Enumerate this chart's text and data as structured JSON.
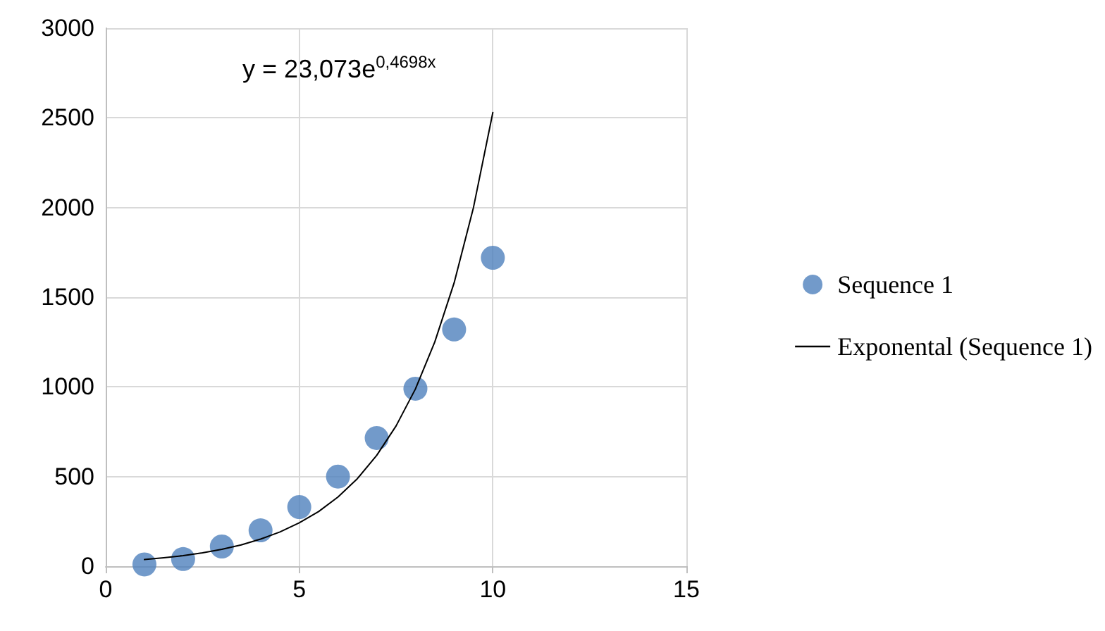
{
  "chart_data": {
    "type": "scatter",
    "annotations": [
      "y = 23,073e$^{0,4698x}$"
    ],
    "xlim": [
      0,
      15
    ],
    "xticks": [
      0,
      5,
      10,
      15
    ],
    "ylim": [
      0,
      3000
    ],
    "yticks": [
      0,
      500,
      1000,
      1500,
      2000,
      2500,
      3000
    ],
    "grid": true,
    "legend": "right",
    "series": [
      {
        "name": "Sequence 1",
        "marker": "circle",
        "color": "#4f81bd",
        "x": [
          1,
          2,
          3,
          4,
          5,
          6,
          7,
          8,
          9,
          10
        ],
        "values": [
          10,
          40,
          110,
          200,
          330,
          500,
          715,
          990,
          1320,
          1720
        ]
      },
      {
        "name": "Exponental (Sequence 1)",
        "type": "line",
        "marker": "none",
        "line_style": "solid",
        "color": "#000000",
        "x": [
          1,
          1.5,
          2,
          2.5,
          3,
          3.5,
          4,
          4.5,
          5,
          5.5,
          6,
          6.5,
          7,
          7.5,
          8,
          8.5,
          9,
          9.5,
          10
        ],
        "values": [
          37,
          47,
          59,
          75,
          94,
          119,
          151,
          191,
          242,
          305,
          386,
          488,
          618,
          782,
          988,
          1250,
          1580,
          2000,
          2530
        ]
      }
    ]
  }
}
